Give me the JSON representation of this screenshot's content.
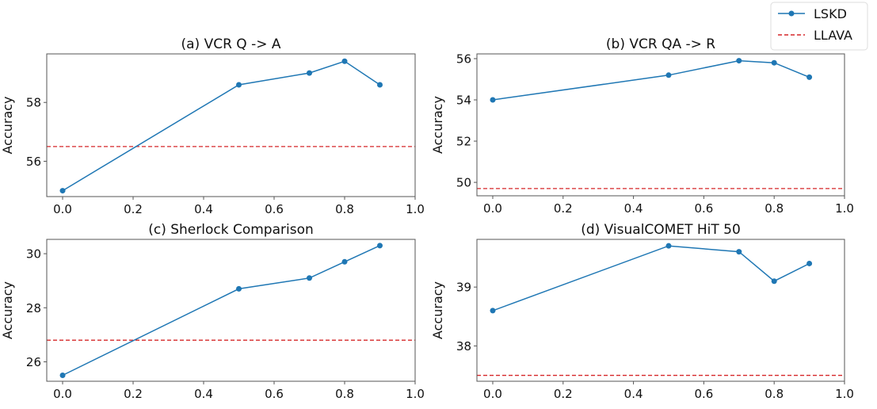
{
  "chart_data": [
    {
      "type": "line",
      "title": "(a) VCR Q -> A",
      "xlabel": "",
      "ylabel": "Accuracy",
      "xlim": [
        -0.045,
        1.0
      ],
      "ylim": [
        54.8,
        59.65
      ],
      "xticks": [
        0.0,
        0.2,
        0.4,
        0.6,
        0.8,
        1.0
      ],
      "xtick_labels": [
        "0.0",
        "0.2",
        "0.4",
        "0.6",
        "0.8",
        "1.0"
      ],
      "yticks": [
        56,
        58
      ],
      "ytick_labels": [
        "56",
        "58"
      ],
      "grid": false,
      "series": [
        {
          "name": "LSKD",
          "x": [
            0.0,
            0.5,
            0.7,
            0.8,
            0.9
          ],
          "values": [
            55.0,
            58.6,
            59.0,
            59.4,
            58.6
          ]
        }
      ],
      "reference_lines": [
        {
          "name": "LLAVA",
          "y": 56.5
        }
      ]
    },
    {
      "type": "line",
      "title": "(b) VCR QA -> R",
      "xlabel": "",
      "ylabel": "Accuracy",
      "xlim": [
        -0.045,
        1.0
      ],
      "ylim": [
        49.35,
        56.23
      ],
      "xticks": [
        0.0,
        0.2,
        0.4,
        0.6,
        0.8,
        1.0
      ],
      "xtick_labels": [
        "0.0",
        "0.2",
        "0.4",
        "0.6",
        "0.8",
        "1.0"
      ],
      "yticks": [
        50,
        52,
        54,
        56
      ],
      "ytick_labels": [
        "50",
        "52",
        "54",
        "56"
      ],
      "grid": false,
      "series": [
        {
          "name": "LSKD",
          "x": [
            0.0,
            0.5,
            0.7,
            0.8,
            0.9
          ],
          "values": [
            54.0,
            55.2,
            55.9,
            55.8,
            55.1
          ]
        }
      ],
      "reference_lines": [
        {
          "name": "LLAVA",
          "y": 49.7
        }
      ]
    },
    {
      "type": "line",
      "title": "(c) Sherlock Comparison",
      "xlabel": "",
      "ylabel": "Accuracy",
      "xlim": [
        -0.045,
        1.0
      ],
      "ylim": [
        25.28,
        30.53
      ],
      "xticks": [
        0.0,
        0.2,
        0.4,
        0.6,
        0.8,
        1.0
      ],
      "xtick_labels": [
        "0.0",
        "0.2",
        "0.4",
        "0.6",
        "0.8",
        "1.0"
      ],
      "yticks": [
        26,
        28,
        30
      ],
      "ytick_labels": [
        "26",
        "28",
        "30"
      ],
      "grid": false,
      "series": [
        {
          "name": "LSKD",
          "x": [
            0.0,
            0.5,
            0.7,
            0.8,
            0.9
          ],
          "values": [
            25.5,
            28.7,
            29.1,
            29.7,
            30.3
          ]
        }
      ],
      "reference_lines": [
        {
          "name": "LLAVA",
          "y": 26.8
        }
      ]
    },
    {
      "type": "line",
      "title": "(d) VisualCOMET HiT 50",
      "xlabel": "",
      "ylabel": "Accuracy",
      "xlim": [
        -0.045,
        1.0
      ],
      "ylim": [
        37.4,
        39.81
      ],
      "xticks": [
        0.0,
        0.2,
        0.4,
        0.6,
        0.8,
        1.0
      ],
      "xtick_labels": [
        "0.0",
        "0.2",
        "0.4",
        "0.6",
        "0.8",
        "1.0"
      ],
      "yticks": [
        38,
        39
      ],
      "ytick_labels": [
        "38",
        "39"
      ],
      "grid": false,
      "series": [
        {
          "name": "LSKD",
          "x": [
            0.0,
            0.5,
            0.7,
            0.8,
            0.9
          ],
          "values": [
            38.6,
            39.7,
            39.6,
            39.1,
            39.4
          ]
        }
      ],
      "reference_lines": [
        {
          "name": "LLAVA",
          "y": 37.5
        }
      ]
    }
  ],
  "legend": {
    "placement": "top-right",
    "entries": [
      {
        "label": "LSKD",
        "style": "solid-with-markers",
        "color": "#1f77b4"
      },
      {
        "label": "LLAVA",
        "style": "dashed",
        "color": "#d62728"
      }
    ]
  },
  "colors": {
    "series": "#1f77b4",
    "reference": "#d62728",
    "axes": "#555555"
  }
}
